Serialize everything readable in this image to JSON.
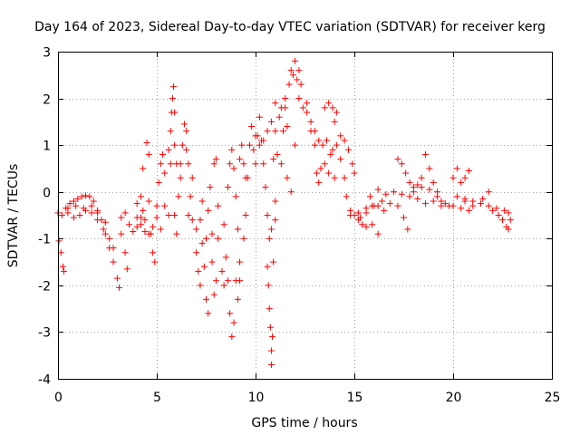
{
  "chart_data": {
    "type": "scatter",
    "title": "Day 164 of 2023, Sidereal Day-to-day VTEC variation (SDTVAR) for receiver kerg",
    "xlabel": "GPS time / hours",
    "ylabel": "SDTVAR / TECUs",
    "xlim": [
      0,
      25
    ],
    "ylim": [
      -4,
      3
    ],
    "xticks": [
      0,
      5,
      10,
      15,
      20,
      25
    ],
    "yticks": [
      -4,
      -3,
      -2,
      -1,
      0,
      1,
      2,
      3
    ],
    "grid": true,
    "marker": "plus",
    "color": "#ff0000",
    "series": [
      {
        "name": "SDTVAR",
        "points": [
          [
            0.0,
            -0.45
          ],
          [
            0.2,
            -0.5
          ],
          [
            0.4,
            -0.35
          ],
          [
            0.6,
            -0.25
          ],
          [
            0.8,
            -0.2
          ],
          [
            1.0,
            -0.15
          ],
          [
            1.2,
            -0.1
          ],
          [
            1.4,
            -0.08
          ],
          [
            1.6,
            -0.1
          ],
          [
            1.8,
            -0.2
          ],
          [
            2.0,
            -0.4
          ],
          [
            2.2,
            -0.6
          ],
          [
            2.4,
            -0.9
          ],
          [
            2.6,
            -1.2
          ],
          [
            2.8,
            -1.5
          ],
          [
            3.0,
            -1.85
          ],
          [
            3.1,
            -2.05
          ],
          [
            0.05,
            -1.05
          ],
          [
            0.15,
            -1.3
          ],
          [
            0.25,
            -1.6
          ],
          [
            0.3,
            -1.7
          ],
          [
            0.5,
            -0.45
          ],
          [
            0.8,
            -0.55
          ],
          [
            1.1,
            -0.5
          ],
          [
            1.4,
            -0.4
          ],
          [
            1.7,
            -0.45
          ],
          [
            2.0,
            -0.6
          ],
          [
            2.3,
            -0.8
          ],
          [
            2.6,
            -1.0
          ],
          [
            2.8,
            -1.2
          ],
          [
            0.5,
            -0.35
          ],
          [
            0.9,
            -0.3
          ],
          [
            1.3,
            -0.35
          ],
          [
            1.7,
            -0.3
          ],
          [
            2.0,
            -0.45
          ],
          [
            2.4,
            -0.65
          ],
          [
            3.2,
            -0.9
          ],
          [
            3.4,
            -1.3
          ],
          [
            3.5,
            -1.65
          ],
          [
            3.2,
            -0.55
          ],
          [
            3.4,
            -0.45
          ],
          [
            3.6,
            -0.7
          ],
          [
            3.8,
            -0.85
          ],
          [
            4.0,
            -0.75
          ],
          [
            4.0,
            -0.25
          ],
          [
            4.2,
            -0.1
          ],
          [
            4.2,
            -0.55
          ],
          [
            4.3,
            -0.4
          ],
          [
            4.4,
            -0.6
          ],
          [
            4.3,
            0.5
          ],
          [
            4.5,
            1.05
          ],
          [
            4.6,
            0.8
          ],
          [
            4.6,
            -0.2
          ],
          [
            4.7,
            -0.9
          ],
          [
            4.8,
            -1.3
          ],
          [
            4.9,
            -1.5
          ],
          [
            4.0,
            -0.55
          ],
          [
            4.2,
            -0.7
          ],
          [
            4.4,
            -0.85
          ],
          [
            4.6,
            -0.9
          ],
          [
            4.8,
            -0.75
          ],
          [
            5.0,
            -0.55
          ],
          [
            5.0,
            -0.3
          ],
          [
            5.1,
            0.2
          ],
          [
            5.2,
            0.6
          ],
          [
            5.3,
            0.8
          ],
          [
            5.2,
            -0.8
          ],
          [
            5.4,
            -0.3
          ],
          [
            5.4,
            0.4
          ],
          [
            5.6,
            0.9
          ],
          [
            5.7,
            0.6
          ],
          [
            5.6,
            -0.5
          ],
          [
            5.7,
            1.3
          ],
          [
            5.75,
            1.7
          ],
          [
            5.8,
            2.0
          ],
          [
            5.85,
            2.25
          ],
          [
            5.9,
            1.7
          ],
          [
            5.9,
            1.0
          ],
          [
            6.0,
            0.6
          ],
          [
            5.9,
            -0.5
          ],
          [
            6.0,
            -0.9
          ],
          [
            6.1,
            -0.1
          ],
          [
            6.2,
            0.3
          ],
          [
            6.2,
            0.6
          ],
          [
            6.3,
            1.0
          ],
          [
            6.4,
            1.45
          ],
          [
            6.5,
            1.3
          ],
          [
            6.5,
            0.9
          ],
          [
            6.6,
            0.6
          ],
          [
            6.6,
            -0.5
          ],
          [
            6.7,
            -0.1
          ],
          [
            6.8,
            0.3
          ],
          [
            6.8,
            -0.6
          ],
          [
            7.0,
            -0.8
          ],
          [
            7.0,
            -1.3
          ],
          [
            7.1,
            -1.7
          ],
          [
            7.2,
            -2.0
          ],
          [
            7.2,
            -0.6
          ],
          [
            7.3,
            -0.2
          ],
          [
            7.3,
            -1.1
          ],
          [
            7.4,
            -1.6
          ],
          [
            7.5,
            -2.3
          ],
          [
            7.6,
            -2.6
          ],
          [
            7.5,
            -1.0
          ],
          [
            7.6,
            -0.4
          ],
          [
            7.7,
            0.1
          ],
          [
            7.8,
            -0.9
          ],
          [
            7.8,
            -1.5
          ],
          [
            7.9,
            -2.2
          ],
          [
            8.0,
            -1.9
          ],
          [
            7.9,
            0.6
          ],
          [
            8.0,
            0.7
          ],
          [
            8.1,
            -0.3
          ],
          [
            8.1,
            -1.0
          ],
          [
            8.3,
            -1.7
          ],
          [
            8.4,
            -2.0
          ],
          [
            8.4,
            -0.7
          ],
          [
            8.5,
            -1.4
          ],
          [
            8.6,
            -1.9
          ],
          [
            8.7,
            -2.6
          ],
          [
            8.8,
            -3.1
          ],
          [
            8.9,
            -2.8
          ],
          [
            8.6,
            0.1
          ],
          [
            8.7,
            0.6
          ],
          [
            8.8,
            0.9
          ],
          [
            8.9,
            0.5
          ],
          [
            9.0,
            -0.1
          ],
          [
            9.1,
            -0.8
          ],
          [
            9.0,
            -1.9
          ],
          [
            9.1,
            -2.3
          ],
          [
            9.2,
            0.7
          ],
          [
            9.3,
            1.0
          ],
          [
            9.4,
            0.6
          ],
          [
            9.5,
            0.3
          ],
          [
            9.2,
            -1.5
          ],
          [
            9.2,
            -1.9
          ],
          [
            9.4,
            -1.0
          ],
          [
            9.5,
            -0.5
          ],
          [
            9.6,
            0.3
          ],
          [
            9.7,
            1.0
          ],
          [
            9.8,
            1.4
          ],
          [
            9.9,
            0.9
          ],
          [
            10.0,
            0.6
          ],
          [
            10.1,
            1.2
          ],
          [
            10.2,
            1.6
          ],
          [
            10.3,
            1.1
          ],
          [
            10.4,
            0.6
          ],
          [
            10.5,
            0.1
          ],
          [
            10.6,
            -0.5
          ],
          [
            10.7,
            -1.0
          ],
          [
            10.8,
            -0.8
          ],
          [
            10.6,
            -1.6
          ],
          [
            10.65,
            -2.0
          ],
          [
            10.7,
            -2.5
          ],
          [
            10.75,
            -2.9
          ],
          [
            10.8,
            -3.4
          ],
          [
            10.8,
            -3.7
          ],
          [
            10.85,
            -3.1
          ],
          [
            10.9,
            -1.5
          ],
          [
            11.0,
            -0.6
          ],
          [
            11.0,
            -0.2
          ],
          [
            10.0,
            1.2
          ],
          [
            10.2,
            1.0
          ],
          [
            10.4,
            1.1
          ],
          [
            10.6,
            1.3
          ],
          [
            10.8,
            1.5
          ],
          [
            11.0,
            1.3
          ],
          [
            11.1,
            0.8
          ],
          [
            11.0,
            1.9
          ],
          [
            11.2,
            1.6
          ],
          [
            11.3,
            1.8
          ],
          [
            11.4,
            1.3
          ],
          [
            11.5,
            2.0
          ],
          [
            11.5,
            1.8
          ],
          [
            11.6,
            1.4
          ],
          [
            11.7,
            2.3
          ],
          [
            11.8,
            2.6
          ],
          [
            11.9,
            2.5
          ],
          [
            12.0,
            2.8
          ],
          [
            12.1,
            2.4
          ],
          [
            12.2,
            2.6
          ],
          [
            12.3,
            2.3
          ],
          [
            10.9,
            0.7
          ],
          [
            11.3,
            0.6
          ],
          [
            11.6,
            0.3
          ],
          [
            11.8,
            0.0
          ],
          [
            12.0,
            1.0
          ],
          [
            12.2,
            2.0
          ],
          [
            12.4,
            1.8
          ],
          [
            12.6,
            1.7
          ],
          [
            12.8,
            1.5
          ],
          [
            13.0,
            1.3
          ],
          [
            13.2,
            1.1
          ],
          [
            13.4,
            1.0
          ],
          [
            13.6,
            1.1
          ],
          [
            13.8,
            0.8
          ],
          [
            14.0,
            0.3
          ],
          [
            12.6,
            1.9
          ],
          [
            12.8,
            1.3
          ],
          [
            13.0,
            1.0
          ],
          [
            13.1,
            0.4
          ],
          [
            13.2,
            0.2
          ],
          [
            13.3,
            0.5
          ],
          [
            13.5,
            0.6
          ],
          [
            13.7,
            0.4
          ],
          [
            13.9,
            0.9
          ],
          [
            14.1,
            1.0
          ],
          [
            14.3,
            0.7
          ],
          [
            14.5,
            0.3
          ],
          [
            14.6,
            -0.1
          ],
          [
            14.8,
            -0.4
          ],
          [
            13.5,
            1.8
          ],
          [
            13.7,
            1.9
          ],
          [
            13.9,
            1.8
          ],
          [
            14.1,
            1.7
          ],
          [
            14.0,
            1.5
          ],
          [
            14.3,
            1.2
          ],
          [
            14.5,
            1.1
          ],
          [
            14.7,
            0.9
          ],
          [
            14.9,
            0.6
          ],
          [
            15.0,
            0.4
          ],
          [
            14.8,
            -0.5
          ],
          [
            15.0,
            -0.5
          ],
          [
            15.3,
            -0.55
          ],
          [
            15.6,
            -0.45
          ],
          [
            15.9,
            -0.3
          ],
          [
            16.2,
            -0.3
          ],
          [
            16.5,
            -0.4
          ],
          [
            15.2,
            -0.6
          ],
          [
            15.4,
            -0.7
          ],
          [
            15.6,
            -0.75
          ],
          [
            15.9,
            -0.7
          ],
          [
            16.2,
            -0.9
          ],
          [
            15.2,
            -0.45
          ],
          [
            15.6,
            -0.35
          ],
          [
            16.0,
            -0.3
          ],
          [
            16.4,
            -0.2
          ],
          [
            16.8,
            -0.25
          ],
          [
            17.2,
            -0.3
          ],
          [
            17.5,
            -0.55
          ],
          [
            17.7,
            -0.8
          ],
          [
            15.8,
            -0.1
          ],
          [
            16.2,
            0.05
          ],
          [
            16.6,
            -0.05
          ],
          [
            17.0,
            0.0
          ],
          [
            17.4,
            -0.05
          ],
          [
            17.8,
            -0.1
          ],
          [
            18.2,
            -0.15
          ],
          [
            18.6,
            -0.25
          ],
          [
            19.0,
            -0.2
          ],
          [
            19.4,
            -0.3
          ],
          [
            17.2,
            0.7
          ],
          [
            17.4,
            0.6
          ],
          [
            17.6,
            0.4
          ],
          [
            17.8,
            0.2
          ],
          [
            18.0,
            0.1
          ],
          [
            18.2,
            0.15
          ],
          [
            18.4,
            0.3
          ],
          [
            18.6,
            0.8
          ],
          [
            18.8,
            0.5
          ],
          [
            19.0,
            0.2
          ],
          [
            19.2,
            0.0
          ],
          [
            19.4,
            -0.2
          ],
          [
            18.0,
            0.0
          ],
          [
            18.4,
            0.1
          ],
          [
            18.8,
            0.05
          ],
          [
            19.2,
            -0.1
          ],
          [
            19.6,
            -0.25
          ],
          [
            20.0,
            -0.3
          ],
          [
            20.4,
            -0.35
          ],
          [
            20.8,
            -0.4
          ],
          [
            19.8,
            -0.3
          ],
          [
            20.0,
            0.3
          ],
          [
            20.2,
            0.5
          ],
          [
            20.4,
            0.2
          ],
          [
            20.6,
            0.3
          ],
          [
            20.8,
            0.45
          ],
          [
            20.6,
            -0.2
          ],
          [
            20.2,
            -0.1
          ],
          [
            20.6,
            -0.15
          ],
          [
            21.0,
            -0.2
          ],
          [
            21.4,
            -0.25
          ],
          [
            21.8,
            -0.3
          ],
          [
            22.2,
            -0.35
          ],
          [
            22.6,
            -0.4
          ],
          [
            22.8,
            -0.45
          ],
          [
            21.0,
            -0.3
          ],
          [
            21.5,
            -0.15
          ],
          [
            21.8,
            0.0
          ],
          [
            22.0,
            -0.4
          ],
          [
            22.3,
            -0.5
          ],
          [
            22.5,
            -0.6
          ],
          [
            22.7,
            -0.75
          ],
          [
            22.8,
            -0.8
          ],
          [
            22.9,
            -0.6
          ]
        ]
      }
    ]
  }
}
